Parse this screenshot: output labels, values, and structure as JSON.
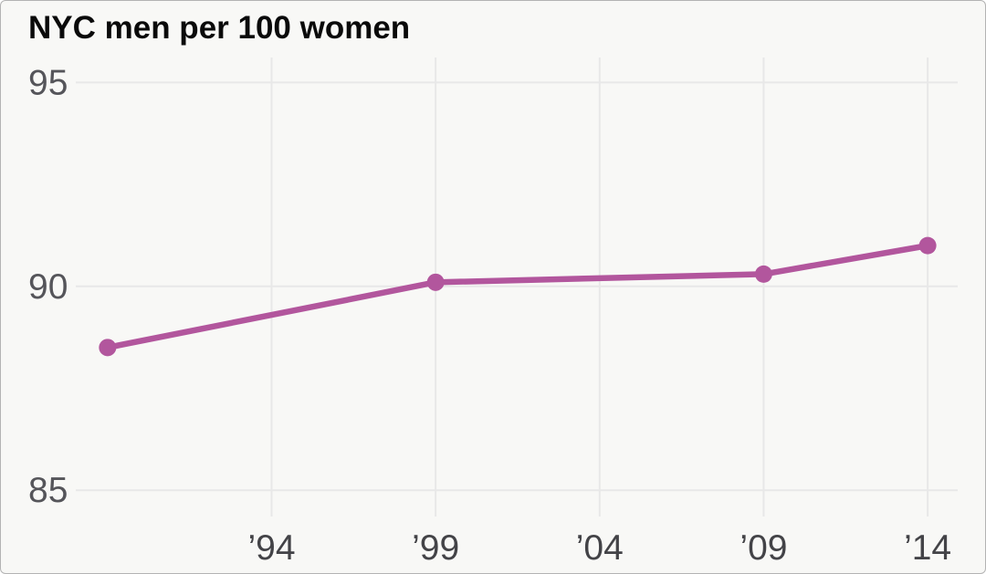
{
  "chart_data": {
    "type": "line",
    "title": "NYC men per 100 women",
    "series": [
      {
        "name": "NYC men per 100 women",
        "x": [
          1989,
          1999,
          2009,
          2014
        ],
        "values": [
          88.5,
          90.1,
          90.3,
          91.0
        ]
      }
    ],
    "x_ticks": [
      {
        "year": 1994,
        "label": "’94"
      },
      {
        "year": 1999,
        "label": "’99"
      },
      {
        "year": 2004,
        "label": "’04"
      },
      {
        "year": 2009,
        "label": "’09"
      },
      {
        "year": 2014,
        "label": "’14"
      }
    ],
    "y_ticks": [
      {
        "value": 95,
        "label": "95"
      },
      {
        "value": 90,
        "label": "90"
      },
      {
        "value": 85,
        "label": "85"
      }
    ],
    "xlim": [
      1988,
      2015
    ],
    "ylim": [
      83.4,
      95.6
    ],
    "grid": true,
    "legend": false,
    "colors": {
      "line": "#b2569d",
      "marker": "#b2569d",
      "grid": "#e8e8e8",
      "background": "#f8f8f6",
      "card_border": "#b3b3b3",
      "title_text": "#0a0a0a",
      "y_tick_text": "#55555a",
      "x_tick_text": "#434347"
    }
  }
}
